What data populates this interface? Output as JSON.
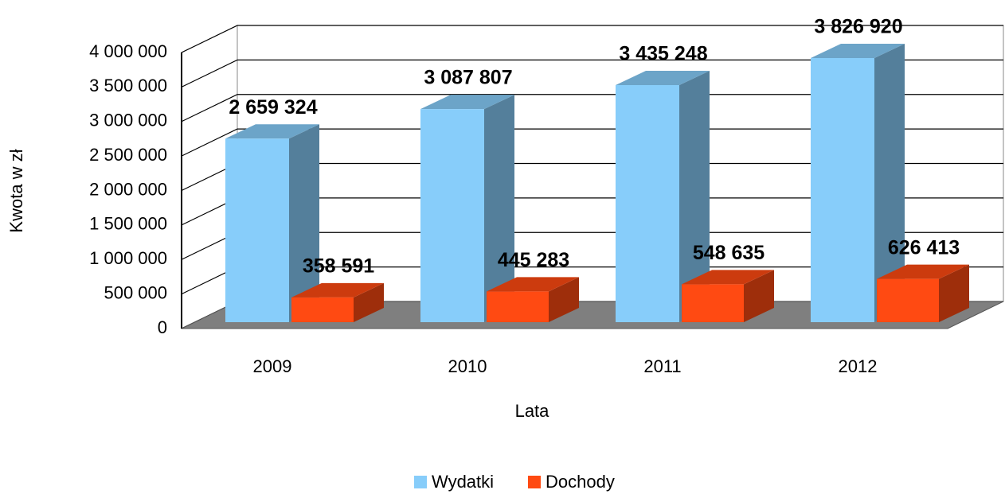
{
  "chart_data": {
    "type": "bar3d",
    "x_label": "Lata",
    "y_label": "Kwota w zł",
    "categories": [
      "2009",
      "2010",
      "2011",
      "2012"
    ],
    "series": [
      {
        "name": "Wydatki",
        "color": "#87cdfa",
        "values": [
          2659324,
          3087807,
          3435248,
          3826920
        ],
        "value_labels": [
          "2 659 324",
          "3 087 807",
          "3 435 248",
          "3 826 920"
        ]
      },
      {
        "name": "Dochody",
        "color": "#ff4a12",
        "values": [
          358591,
          445283,
          548635,
          626413
        ],
        "value_labels": [
          "358 591",
          "445 283",
          "548 635",
          "626 413"
        ]
      }
    ],
    "ylim": [
      0,
      4000000
    ],
    "yticks": [
      0,
      {
        "value": 500000,
        "label": "500 000"
      },
      {
        "value": 1000000,
        "label": "1 000 000"
      },
      {
        "value": 1500000,
        "label": "1 500 000"
      },
      {
        "value": 2000000,
        "label": "2 000 000"
      },
      {
        "value": 2500000,
        "label": "2 500 000"
      },
      {
        "value": 3000000,
        "label": "3 000 000"
      },
      {
        "value": 3500000,
        "label": "3 500 000"
      },
      {
        "value": 4000000,
        "label": "4 000 000"
      }
    ],
    "grid": true,
    "legend": "bottom"
  }
}
